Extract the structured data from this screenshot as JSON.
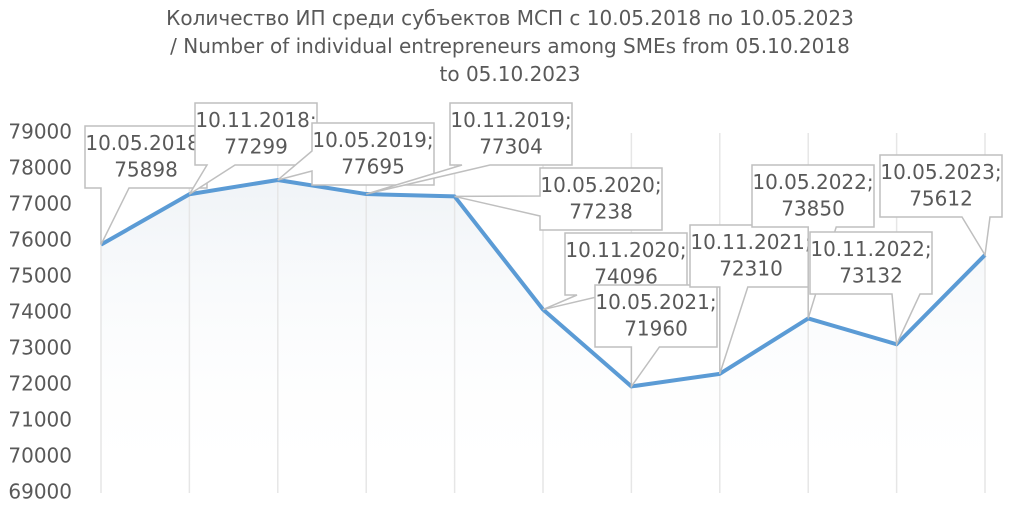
{
  "chart_data": {
    "type": "line",
    "title": "Количество ИП среди субъектов МСП с 10.05.2018 по 10.05.2023 / Number of individual entrepreneurs among SMEs from 05.10.2018 to 05.10.2023",
    "categories": [
      "10.05.2018",
      "10.11.2018",
      "10.05.2019",
      "10.11.2019",
      "10.05.2020",
      "10.11.2020",
      "10.05.2021",
      "10.11.2021",
      "10.05.2022",
      "10.11.2022",
      "10.05.2023"
    ],
    "label_separator": ";",
    "series": [
      {
        "name": "ИП",
        "color": "#5b9bd5",
        "values": [
          75898,
          77299,
          77695,
          77304,
          77238,
          74096,
          71960,
          72310,
          73850,
          73132,
          75612
        ]
      }
    ],
    "ylim": [
      69000,
      79000
    ],
    "yticks": [
      69000,
      70000,
      71000,
      72000,
      73000,
      74000,
      75000,
      76000,
      77000,
      78000,
      79000
    ],
    "grid": "vertical"
  }
}
